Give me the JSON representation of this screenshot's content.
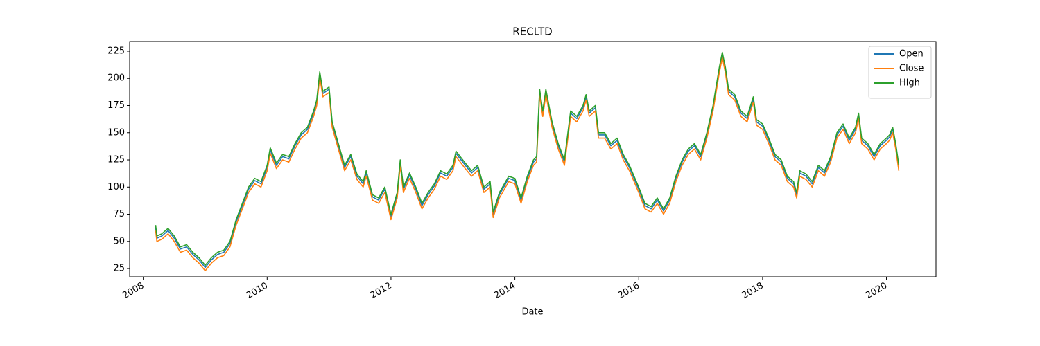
{
  "chart_data": {
    "type": "line",
    "title": "RECLTD",
    "xlabel": "Date",
    "x": [
      2008.2,
      2008.22,
      2008.3,
      2008.4,
      2008.5,
      2008.6,
      2008.7,
      2008.8,
      2008.9,
      2009.0,
      2009.1,
      2009.2,
      2009.3,
      2009.4,
      2009.5,
      2009.6,
      2009.7,
      2009.8,
      2009.9,
      2010.0,
      2010.05,
      2010.15,
      2010.25,
      2010.35,
      2010.45,
      2010.55,
      2010.65,
      2010.75,
      2010.8,
      2010.85,
      2010.9,
      2011.0,
      2011.05,
      2011.15,
      2011.25,
      2011.35,
      2011.45,
      2011.55,
      2011.6,
      2011.7,
      2011.8,
      2011.9,
      2012.0,
      2012.1,
      2012.15,
      2012.2,
      2012.3,
      2012.4,
      2012.5,
      2012.6,
      2012.7,
      2012.8,
      2012.9,
      2013.0,
      2013.05,
      2013.2,
      2013.3,
      2013.4,
      2013.5,
      2013.6,
      2013.65,
      2013.75,
      2013.9,
      2014.0,
      2014.1,
      2014.2,
      2014.3,
      2014.35,
      2014.4,
      2014.45,
      2014.5,
      2014.6,
      2014.7,
      2014.8,
      2014.9,
      2015.0,
      2015.1,
      2015.15,
      2015.2,
      2015.3,
      2015.35,
      2015.45,
      2015.55,
      2015.65,
      2015.75,
      2015.85,
      2016.0,
      2016.1,
      2016.2,
      2016.3,
      2016.4,
      2016.5,
      2016.6,
      2016.7,
      2016.8,
      2016.9,
      2017.0,
      2017.1,
      2017.2,
      2017.3,
      2017.35,
      2017.4,
      2017.45,
      2017.55,
      2017.65,
      2017.75,
      2017.85,
      2017.9,
      2018.0,
      2018.1,
      2018.2,
      2018.3,
      2018.4,
      2018.5,
      2018.55,
      2018.6,
      2018.7,
      2018.8,
      2018.9,
      2019.0,
      2019.1,
      2019.2,
      2019.3,
      2019.4,
      2019.5,
      2019.55,
      2019.6,
      2019.7,
      2019.8,
      2019.9,
      2020.0,
      2020.05,
      2020.1,
      2020.15,
      2020.2
    ],
    "series": [
      {
        "name": "Open",
        "color": "#1f77b4",
        "values": [
          63,
          53,
          55,
          60,
          53,
          43,
          45,
          38,
          33,
          26,
          33,
          38,
          40,
          48,
          68,
          83,
          98,
          106,
          103,
          118,
          134,
          120,
          128,
          126,
          138,
          148,
          153,
          168,
          178,
          204,
          186,
          190,
          158,
          138,
          118,
          128,
          110,
          103,
          113,
          91,
          88,
          98,
          73,
          93,
          123,
          98,
          111,
          98,
          83,
          93,
          101,
          113,
          110,
          118,
          131,
          120,
          113,
          118,
          98,
          103,
          75,
          93,
          108,
          106,
          88,
          108,
          123,
          126,
          188,
          168,
          188,
          158,
          138,
          123,
          168,
          163,
          173,
          183,
          168,
          173,
          148,
          148,
          138,
          143,
          128,
          118,
          98,
          83,
          80,
          88,
          78,
          88,
          108,
          123,
          133,
          138,
          128,
          148,
          173,
          208,
          222,
          208,
          188,
          183,
          168,
          163,
          181,
          160,
          156,
          143,
          128,
          123,
          108,
          103,
          93,
          113,
          110,
          103,
          118,
          113,
          126,
          148,
          156,
          143,
          153,
          166,
          143,
          138,
          128,
          138,
          143,
          146,
          153,
          138,
          118
        ]
      },
      {
        "name": "Close",
        "color": "#ff7f0e",
        "values": [
          60,
          50,
          52,
          57,
          50,
          40,
          42,
          35,
          30,
          23,
          30,
          35,
          37,
          45,
          65,
          80,
          95,
          103,
          100,
          115,
          131,
          117,
          125,
          123,
          135,
          145,
          150,
          165,
          175,
          201,
          183,
          187,
          155,
          135,
          115,
          125,
          107,
          100,
          110,
          88,
          85,
          95,
          70,
          90,
          120,
          95,
          108,
          95,
          80,
          90,
          98,
          110,
          107,
          115,
          128,
          117,
          110,
          115,
          95,
          100,
          72,
          90,
          105,
          103,
          85,
          105,
          120,
          123,
          185,
          165,
          185,
          155,
          135,
          120,
          165,
          160,
          170,
          180,
          165,
          170,
          145,
          145,
          135,
          140,
          125,
          115,
          95,
          80,
          77,
          85,
          75,
          85,
          105,
          120,
          130,
          135,
          125,
          145,
          170,
          205,
          219,
          205,
          185,
          180,
          165,
          160,
          178,
          157,
          153,
          140,
          125,
          120,
          105,
          100,
          90,
          110,
          107,
          100,
          115,
          110,
          123,
          145,
          153,
          140,
          150,
          163,
          140,
          135,
          125,
          135,
          140,
          143,
          150,
          135,
          115
        ]
      },
      {
        "name": "High",
        "color": "#2ca02c",
        "values": [
          65,
          55,
          57,
          62,
          55,
          45,
          47,
          40,
          35,
          28,
          35,
          40,
          42,
          50,
          70,
          85,
          100,
          108,
          105,
          120,
          136,
          122,
          130,
          128,
          140,
          150,
          155,
          170,
          180,
          206,
          188,
          192,
          160,
          140,
          120,
          130,
          112,
          105,
          115,
          93,
          90,
          100,
          75,
          95,
          125,
          100,
          113,
          100,
          85,
          95,
          103,
          115,
          112,
          120,
          133,
          122,
          115,
          120,
          100,
          105,
          77,
          95,
          110,
          108,
          90,
          110,
          125,
          128,
          190,
          170,
          190,
          160,
          140,
          125,
          170,
          165,
          175,
          185,
          170,
          175,
          150,
          150,
          140,
          145,
          130,
          120,
          100,
          85,
          82,
          90,
          80,
          90,
          110,
          125,
          135,
          140,
          130,
          150,
          175,
          210,
          224,
          210,
          190,
          185,
          170,
          165,
          183,
          162,
          158,
          145,
          130,
          125,
          110,
          105,
          95,
          115,
          112,
          105,
          120,
          115,
          128,
          150,
          158,
          145,
          155,
          168,
          145,
          140,
          130,
          140,
          145,
          148,
          155,
          140,
          120
        ]
      }
    ],
    "xlim": [
      2007.78,
      2020.8
    ],
    "xticks": [
      2008,
      2010,
      2012,
      2014,
      2016,
      2018,
      2020
    ],
    "ylim": [
      17.4,
      233.9
    ],
    "yticks": [
      25,
      50,
      75,
      100,
      125,
      150,
      175,
      200,
      225
    ],
    "legend": "upper right",
    "grid": false
  }
}
